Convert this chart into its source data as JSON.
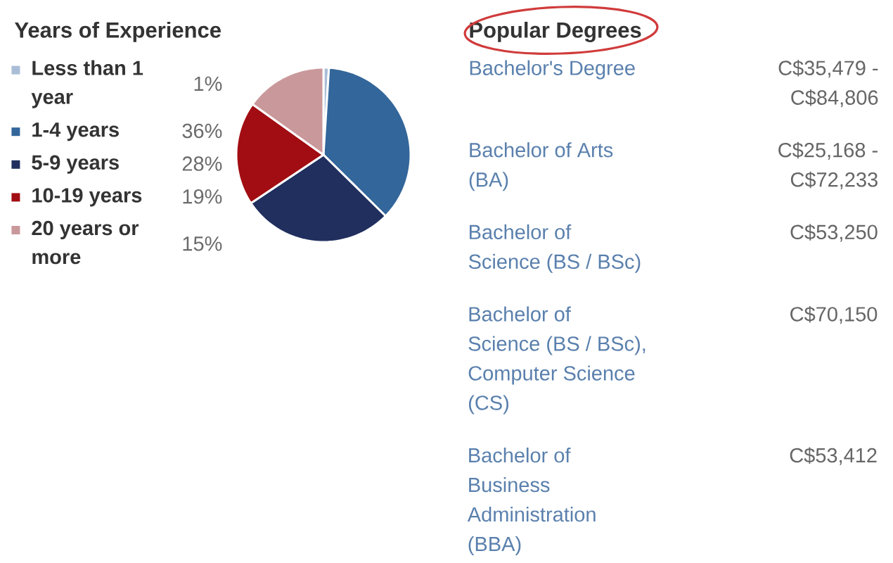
{
  "chart_data": [
    {
      "type": "pie",
      "title": "Years of Experience",
      "categories": [
        "Less than 1 year",
        "1-4 years",
        "5-9 years",
        "10-19 years",
        "20 years or more"
      ],
      "values": [
        1,
        36,
        28,
        19,
        15
      ],
      "value_labels": [
        "1%",
        "36%",
        "28%",
        "19%",
        "15%"
      ],
      "colors": [
        "#a9bdd6",
        "#33669a",
        "#202f5e",
        "#a10d12",
        "#c9989b"
      ],
      "legend": "left"
    },
    {
      "type": "other",
      "title": "Popular Degrees",
      "categories": [
        "Bachelor's Degree",
        "Bachelor of Arts (BA)",
        "Bachelor of Science (BS / BSc)",
        "Bachelor of Science (BS / BSc), Computer Science (CS)",
        "Bachelor of Business Administration (BBA)"
      ],
      "value_labels": [
        "C$35,479 - C$84,806",
        "C$25,168 - C$72,233",
        "C$53,250",
        "C$70,150",
        "C$53,412"
      ]
    }
  ]
}
